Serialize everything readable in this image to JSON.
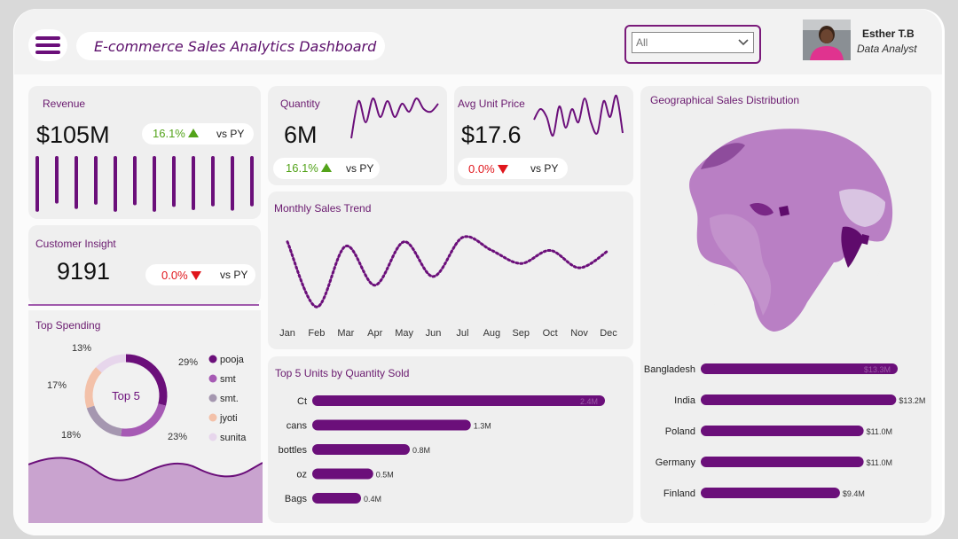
{
  "header": {
    "title": "E-commerce Sales Analytics Dashboard",
    "filter_value": "All",
    "user_name": "Esther T.B",
    "user_role": "Data Analyst"
  },
  "kpis": {
    "revenue": {
      "label": "Revenue",
      "value": "$105M",
      "change": "16.1%",
      "direction": "up",
      "compare": "vs PY"
    },
    "quantity": {
      "label": "Quantity",
      "value": "6M",
      "change": "16.1%",
      "direction": "up",
      "compare": "vs PY"
    },
    "avg_price": {
      "label": "Avg Unit Price",
      "value": "$17.6",
      "change": "0.0%",
      "direction": "down",
      "compare": "vs PY"
    },
    "customers": {
      "label": "Customer Insight",
      "value": "9191",
      "change": "0.0%",
      "direction": "down",
      "compare": "vs PY"
    }
  },
  "colors": {
    "accent": "#6b0f7a",
    "light": "#c18ec9",
    "up": "#53a31a",
    "down": "#e0161c"
  },
  "chart_data": [
    {
      "type": "line",
      "title": "Monthly Sales Trend",
      "categories": [
        "Jan",
        "Feb",
        "Mar",
        "Apr",
        "May",
        "Jun",
        "Jul",
        "Aug",
        "Sep",
        "Oct",
        "Nov",
        "Dec"
      ],
      "values": [
        0.85,
        0.1,
        0.8,
        0.35,
        0.85,
        0.45,
        0.9,
        0.75,
        0.6,
        0.75,
        0.55,
        0.75
      ]
    },
    {
      "type": "pie",
      "title": "Top Spending",
      "center_label": "Top 5",
      "categories": [
        "pooja",
        "smt",
        "smt.",
        "jyoti",
        "sunita"
      ],
      "values": [
        29,
        23,
        18,
        17,
        13
      ],
      "labels": [
        "29%",
        "23%",
        "18%",
        "17%",
        "13%"
      ],
      "colors": [
        "#6b0f7a",
        "#a65ab4",
        "#a597b0",
        "#f3c1a9",
        "#e7d6ec"
      ]
    },
    {
      "type": "bar",
      "title": "Top 5 Units by Quantity Sold",
      "categories": [
        "Ct",
        "cans",
        "bottles",
        "oz",
        "Bags"
      ],
      "values": [
        2.4,
        1.3,
        0.8,
        0.5,
        0.4
      ],
      "labels": [
        "2.4M",
        "1.3M",
        "0.8M",
        "0.5M",
        "0.4M"
      ]
    },
    {
      "type": "bar",
      "title": "Geographical Sales Distribution",
      "categories": [
        "Bangladesh",
        "India",
        "Poland",
        "Germany",
        "Finland"
      ],
      "values": [
        13.3,
        13.2,
        11.0,
        11.0,
        9.4
      ],
      "labels": [
        "$13.3M",
        "$13.2M",
        "$11.0M",
        "$11.0M",
        "$9.4M"
      ]
    }
  ],
  "sparklines": {
    "revenue_bars": [
      0.95,
      0.8,
      0.9,
      0.82,
      0.95,
      0.83,
      0.95,
      0.86,
      0.92,
      0.85,
      0.93,
      0.85
    ],
    "quantity": [
      0.2,
      0.9,
      0.5,
      0.95,
      0.6,
      0.9,
      0.6,
      0.85,
      0.7,
      0.95,
      0.75,
      0.7,
      0.85
    ],
    "avg_price": [
      0.55,
      0.75,
      0.6,
      0.25,
      0.8,
      0.4,
      0.75,
      0.5,
      0.95,
      0.5,
      0.3,
      0.9,
      0.6,
      1.0,
      0.3
    ]
  }
}
